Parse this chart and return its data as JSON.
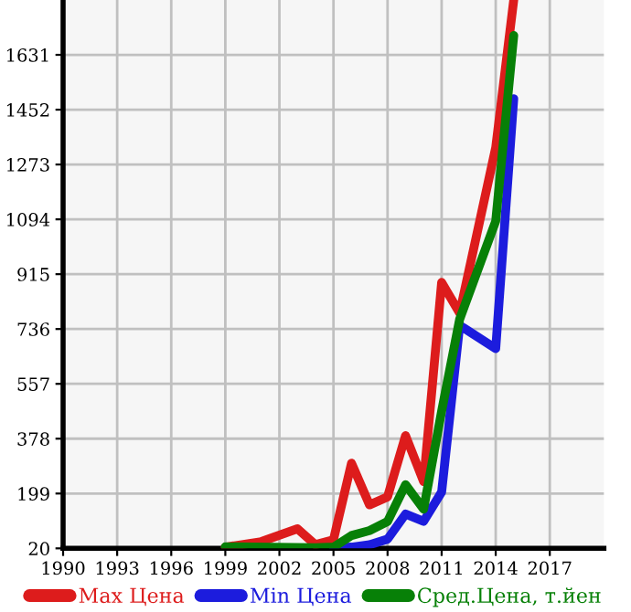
{
  "chart_data": {
    "type": "line",
    "xlim": [
      1990,
      2020
    ],
    "ylim": [
      20,
      1810
    ],
    "xticks": [
      1990,
      1993,
      1996,
      1999,
      2002,
      2005,
      2008,
      2011,
      2014,
      2017
    ],
    "yticks": [
      20,
      199,
      378,
      557,
      736,
      915,
      1094,
      1273,
      1452,
      1631
    ],
    "grid": true,
    "legend": "bottom",
    "marker": "none",
    "line_style": "solid",
    "series": [
      {
        "name": "Max Цена",
        "color": "#dd1c1c",
        "x": [
          1999,
          2001,
          2003,
          2004,
          2005,
          2006,
          2007,
          2008,
          2009,
          2010,
          2011,
          2012,
          2014,
          2015
        ],
        "values": [
          24,
          42,
          84,
          32,
          48,
          298,
          162,
          188,
          388,
          238,
          888,
          788,
          1328,
          1810
        ]
      },
      {
        "name": "Min Цена",
        "color": "#1c1cdd",
        "x": [
          2005,
          2006,
          2007,
          2008,
          2009,
          2010,
          2011,
          2012,
          2014,
          2015
        ],
        "values": [
          22,
          24,
          32,
          50,
          132,
          108,
          204,
          748,
          672,
          1488
        ]
      },
      {
        "name": "Сред.Цена, т.йен",
        "color": "#078007",
        "x": [
          1999,
          2004,
          2005,
          2006,
          2007,
          2008,
          2009,
          2010,
          2011,
          2012,
          2014,
          2015
        ],
        "values": [
          25,
          22,
          24,
          62,
          78,
          108,
          228,
          148,
          468,
          768,
          1088,
          1694
        ]
      }
    ]
  }
}
